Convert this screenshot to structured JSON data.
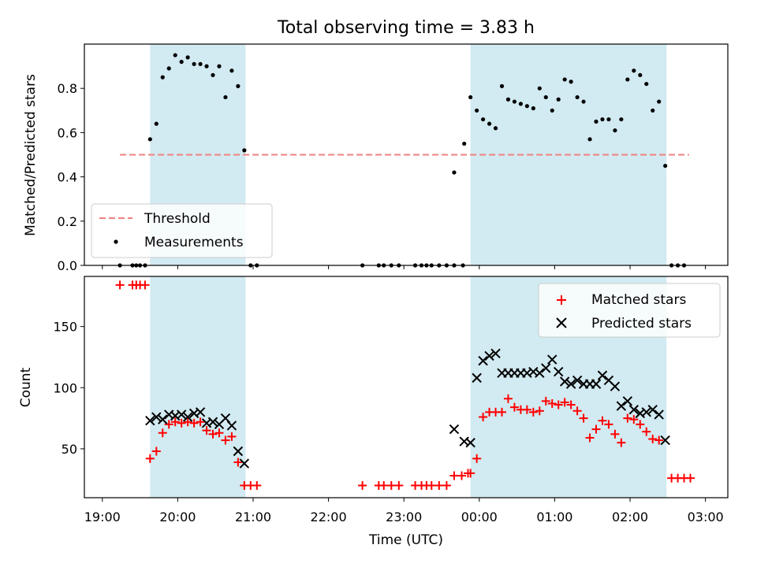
{
  "chart_data": [
    {
      "type": "scatter",
      "title": "Total observing time = 3.83 h",
      "ylabel": "Matched/Predicted stars",
      "xlabel": "",
      "xlim": [
        "19:00",
        "03:00"
      ],
      "ylim": [
        0,
        1.0
      ],
      "yticks": [
        0.0,
        0.2,
        0.4,
        0.6,
        0.8
      ],
      "yticklabels": [
        "0.0",
        "0.2",
        "0.4",
        "0.6",
        "0.8"
      ],
      "shaded_intervals": [
        [
          "19:38",
          "20:54"
        ],
        [
          "23:53",
          "02:29"
        ]
      ],
      "shade_color": "#add8e6",
      "threshold": {
        "label": "Threshold",
        "y": 0.5,
        "x": [
          "19:14",
          "02:47"
        ],
        "color": "#f08080"
      },
      "legend": {
        "position": "lower-left",
        "entries": [
          "Threshold",
          "Measurements"
        ]
      },
      "series": [
        {
          "name": "Measurements",
          "marker": "dot",
          "color": "#000000",
          "points": [
            [
              "19:14",
              0
            ],
            [
              "19:24",
              0
            ],
            [
              "19:27",
              0
            ],
            [
              "19:30",
              0
            ],
            [
              "19:34",
              0
            ],
            [
              "19:38",
              0.57
            ],
            [
              "19:43",
              0.64
            ],
            [
              "19:48",
              0.85
            ],
            [
              "19:53",
              0.89
            ],
            [
              "19:58",
              0.95
            ],
            [
              "20:03",
              0.92
            ],
            [
              "20:08",
              0.94
            ],
            [
              "20:13",
              0.91
            ],
            [
              "20:18",
              0.91
            ],
            [
              "20:23",
              0.9
            ],
            [
              "20:28",
              0.86
            ],
            [
              "20:33",
              0.9
            ],
            [
              "20:38",
              0.76
            ],
            [
              "20:43",
              0.88
            ],
            [
              "20:48",
              0.81
            ],
            [
              "20:53",
              0.52
            ],
            [
              "20:58",
              0
            ],
            [
              "21:03",
              0
            ],
            [
              "22:27",
              0
            ],
            [
              "22:40",
              0
            ],
            [
              "22:44",
              0
            ],
            [
              "22:50",
              0
            ],
            [
              "22:56",
              0
            ],
            [
              "23:09",
              0
            ],
            [
              "23:14",
              0
            ],
            [
              "23:18",
              0
            ],
            [
              "23:22",
              0
            ],
            [
              "23:28",
              0
            ],
            [
              "23:34",
              0
            ],
            [
              "23:40",
              0
            ],
            [
              "23:47",
              0
            ],
            [
              "23:40",
              0.42
            ],
            [
              "23:48",
              0.55
            ],
            [
              "23:53",
              0.76
            ],
            [
              "23:58",
              0.7
            ],
            [
              "00:03",
              0.66
            ],
            [
              "00:08",
              0.64
            ],
            [
              "00:13",
              0.62
            ],
            [
              "00:18",
              0.81
            ],
            [
              "00:23",
              0.75
            ],
            [
              "00:28",
              0.74
            ],
            [
              "00:33",
              0.73
            ],
            [
              "00:38",
              0.72
            ],
            [
              "00:43",
              0.71
            ],
            [
              "00:48",
              0.8
            ],
            [
              "00:53",
              0.76
            ],
            [
              "00:58",
              0.7
            ],
            [
              "01:03",
              0.75
            ],
            [
              "01:08",
              0.84
            ],
            [
              "01:13",
              0.83
            ],
            [
              "01:18",
              0.76
            ],
            [
              "01:23",
              0.74
            ],
            [
              "01:28",
              0.57
            ],
            [
              "01:33",
              0.65
            ],
            [
              "01:38",
              0.66
            ],
            [
              "01:43",
              0.66
            ],
            [
              "01:48",
              0.61
            ],
            [
              "01:53",
              0.66
            ],
            [
              "01:58",
              0.84
            ],
            [
              "02:03",
              0.88
            ],
            [
              "02:08",
              0.86
            ],
            [
              "02:13",
              0.82
            ],
            [
              "02:18",
              0.7
            ],
            [
              "02:23",
              0.74
            ],
            [
              "02:28",
              0.45
            ],
            [
              "02:33",
              0
            ],
            [
              "02:38",
              0
            ],
            [
              "02:43",
              0
            ]
          ]
        }
      ]
    },
    {
      "type": "scatter",
      "title": "",
      "xlabel": "Time (UTC)",
      "ylabel": "Count",
      "xlim": [
        "19:00",
        "03:00"
      ],
      "ylim": [
        10,
        191
      ],
      "xticks": [
        "19:00",
        "20:00",
        "21:00",
        "22:00",
        "23:00",
        "00:00",
        "01:00",
        "02:00",
        "03:00"
      ],
      "yticks": [
        50,
        100,
        150
      ],
      "yticklabels": [
        "50",
        "100",
        "150"
      ],
      "shaded_intervals": [
        [
          "19:38",
          "20:54"
        ],
        [
          "23:53",
          "02:29"
        ]
      ],
      "shade_color": "#add8e6",
      "legend": {
        "position": "upper-right",
        "entries": [
          "Matched stars",
          "Predicted stars"
        ]
      },
      "series": [
        {
          "name": "Matched stars",
          "marker": "plus",
          "color": "#ff0000",
          "points": [
            [
              "19:14",
              184
            ],
            [
              "19:24",
              184
            ],
            [
              "19:27",
              184
            ],
            [
              "19:30",
              184
            ],
            [
              "19:34",
              184
            ],
            [
              "19:38",
              42
            ],
            [
              "19:43",
              48
            ],
            [
              "19:48",
              63
            ],
            [
              "19:53",
              70
            ],
            [
              "19:58",
              72
            ],
            [
              "20:03",
              71
            ],
            [
              "20:08",
              72
            ],
            [
              "20:13",
              71
            ],
            [
              "20:18",
              72
            ],
            [
              "20:23",
              65
            ],
            [
              "20:28",
              62
            ],
            [
              "20:33",
              63
            ],
            [
              "20:38",
              57
            ],
            [
              "20:43",
              60
            ],
            [
              "20:48",
              39
            ],
            [
              "20:53",
              20
            ],
            [
              "20:58",
              20
            ],
            [
              "21:03",
              20
            ],
            [
              "22:27",
              20
            ],
            [
              "22:40",
              20
            ],
            [
              "22:44",
              20
            ],
            [
              "22:50",
              20
            ],
            [
              "22:56",
              20
            ],
            [
              "23:09",
              20
            ],
            [
              "23:14",
              20
            ],
            [
              "23:18",
              20
            ],
            [
              "23:22",
              20
            ],
            [
              "23:28",
              20
            ],
            [
              "23:34",
              20
            ],
            [
              "23:40",
              28
            ],
            [
              "23:46",
              28
            ],
            [
              "23:51",
              30
            ],
            [
              "23:53",
              30
            ],
            [
              "23:58",
              42
            ],
            [
              "00:03",
              76
            ],
            [
              "00:08",
              80
            ],
            [
              "00:13",
              80
            ],
            [
              "00:18",
              80
            ],
            [
              "00:23",
              91
            ],
            [
              "00:28",
              84
            ],
            [
              "00:33",
              82
            ],
            [
              "00:38",
              82
            ],
            [
              "00:43",
              80
            ],
            [
              "00:48",
              81
            ],
            [
              "00:53",
              89
            ],
            [
              "00:58",
              87
            ],
            [
              "01:03",
              86
            ],
            [
              "01:08",
              88
            ],
            [
              "01:13",
              86
            ],
            [
              "01:18",
              81
            ],
            [
              "01:23",
              75
            ],
            [
              "01:28",
              59
            ],
            [
              "01:33",
              66
            ],
            [
              "01:38",
              73
            ],
            [
              "01:43",
              70
            ],
            [
              "01:48",
              62
            ],
            [
              "01:53",
              55
            ],
            [
              "01:58",
              75
            ],
            [
              "02:03",
              74
            ],
            [
              "02:08",
              70
            ],
            [
              "02:13",
              64
            ],
            [
              "02:18",
              58
            ],
            [
              "02:23",
              57
            ],
            [
              "02:33",
              26
            ],
            [
              "02:38",
              26
            ],
            [
              "02:43",
              26
            ],
            [
              "02:48",
              26
            ]
          ]
        },
        {
          "name": "Predicted stars",
          "marker": "x",
          "color": "#000000",
          "points": [
            [
              "19:38",
              73
            ],
            [
              "19:43",
              76
            ],
            [
              "19:48",
              74
            ],
            [
              "19:53",
              78
            ],
            [
              "19:58",
              77
            ],
            [
              "20:03",
              78
            ],
            [
              "20:08",
              76
            ],
            [
              "20:13",
              79
            ],
            [
              "20:18",
              80
            ],
            [
              "20:23",
              71
            ],
            [
              "20:28",
              72
            ],
            [
              "20:33",
              70
            ],
            [
              "20:38",
              75
            ],
            [
              "20:43",
              69
            ],
            [
              "20:48",
              48
            ],
            [
              "20:53",
              38
            ],
            [
              "23:40",
              66
            ],
            [
              "23:48",
              56
            ],
            [
              "23:53",
              55
            ],
            [
              "23:58",
              108
            ],
            [
              "00:03",
              122
            ],
            [
              "00:08",
              126
            ],
            [
              "00:13",
              128
            ],
            [
              "00:18",
              112
            ],
            [
              "00:23",
              112
            ],
            [
              "00:28",
              112
            ],
            [
              "00:33",
              112
            ],
            [
              "00:38",
              112
            ],
            [
              "00:43",
              113
            ],
            [
              "00:48",
              112
            ],
            [
              "00:53",
              116
            ],
            [
              "00:58",
              123
            ],
            [
              "01:03",
              113
            ],
            [
              "01:08",
              105
            ],
            [
              "01:13",
              103
            ],
            [
              "01:18",
              106
            ],
            [
              "01:23",
              103
            ],
            [
              "01:28",
              103
            ],
            [
              "01:33",
              103
            ],
            [
              "01:38",
              110
            ],
            [
              "01:43",
              106
            ],
            [
              "01:48",
              101
            ],
            [
              "01:53",
              85
            ],
            [
              "01:58",
              89
            ],
            [
              "02:03",
              82
            ],
            [
              "02:08",
              79
            ],
            [
              "02:13",
              80
            ],
            [
              "02:18",
              82
            ],
            [
              "02:23",
              78
            ],
            [
              "02:28",
              57
            ]
          ]
        }
      ]
    }
  ]
}
